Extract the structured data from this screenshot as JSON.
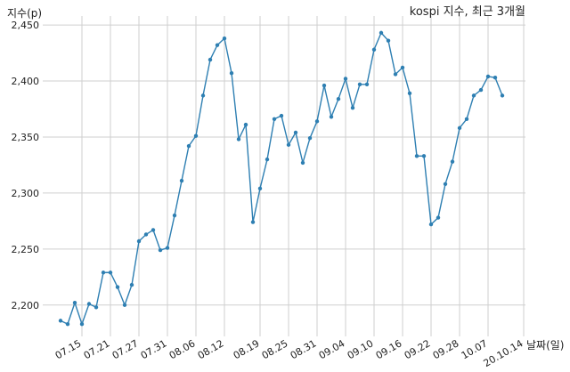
{
  "chart_data": {
    "type": "line",
    "title": "kospi 지수, 최근 3개월",
    "xlabel": "날짜(일)",
    "ylabel": "지수(p)",
    "ylim": [
      2172,
      2458
    ],
    "y_ticks": [
      2200,
      2250,
      2300,
      2350,
      2400,
      2450
    ],
    "y_tick_labels": [
      "2,200",
      "2,250",
      "2,300",
      "2,350",
      "2,400",
      "2,450"
    ],
    "x_tick_labels": [
      "07.15",
      "07.21",
      "07.27",
      "07.31",
      "08.06",
      "08.12",
      "08.19",
      "08.25",
      "08.31",
      "09.04",
      "09.10",
      "09.16",
      "09.22",
      "09.28",
      "10.07",
      "20.10.14"
    ],
    "x_tick_index": [
      3,
      7,
      11,
      15,
      19,
      23,
      28,
      32,
      36,
      40,
      44,
      48,
      52,
      56,
      60,
      65
    ],
    "grid": true,
    "legend": "none",
    "line_color": "#2e7fb2",
    "series": [
      {
        "values": [
          2186,
          2183,
          2202,
          2183,
          2201,
          2198,
          2229,
          2229,
          2216,
          2200,
          2218,
          2257,
          2263,
          2267,
          2249,
          2251,
          2280,
          2311,
          2342,
          2351,
          2387,
          2419,
          2432,
          2438,
          2407,
          2348,
          2361,
          2274,
          2304,
          2330,
          2366,
          2369,
          2343,
          2354,
          2327,
          2349,
          2364,
          2396,
          2368,
          2384,
          2402,
          2376,
          2397,
          2397,
          2428,
          2443,
          2436,
          2406,
          2412,
          2389,
          2333,
          2333,
          2272,
          2278,
          2308,
          2328,
          2358,
          2366,
          2387,
          2392,
          2404,
          2403,
          2387
        ]
      }
    ]
  }
}
